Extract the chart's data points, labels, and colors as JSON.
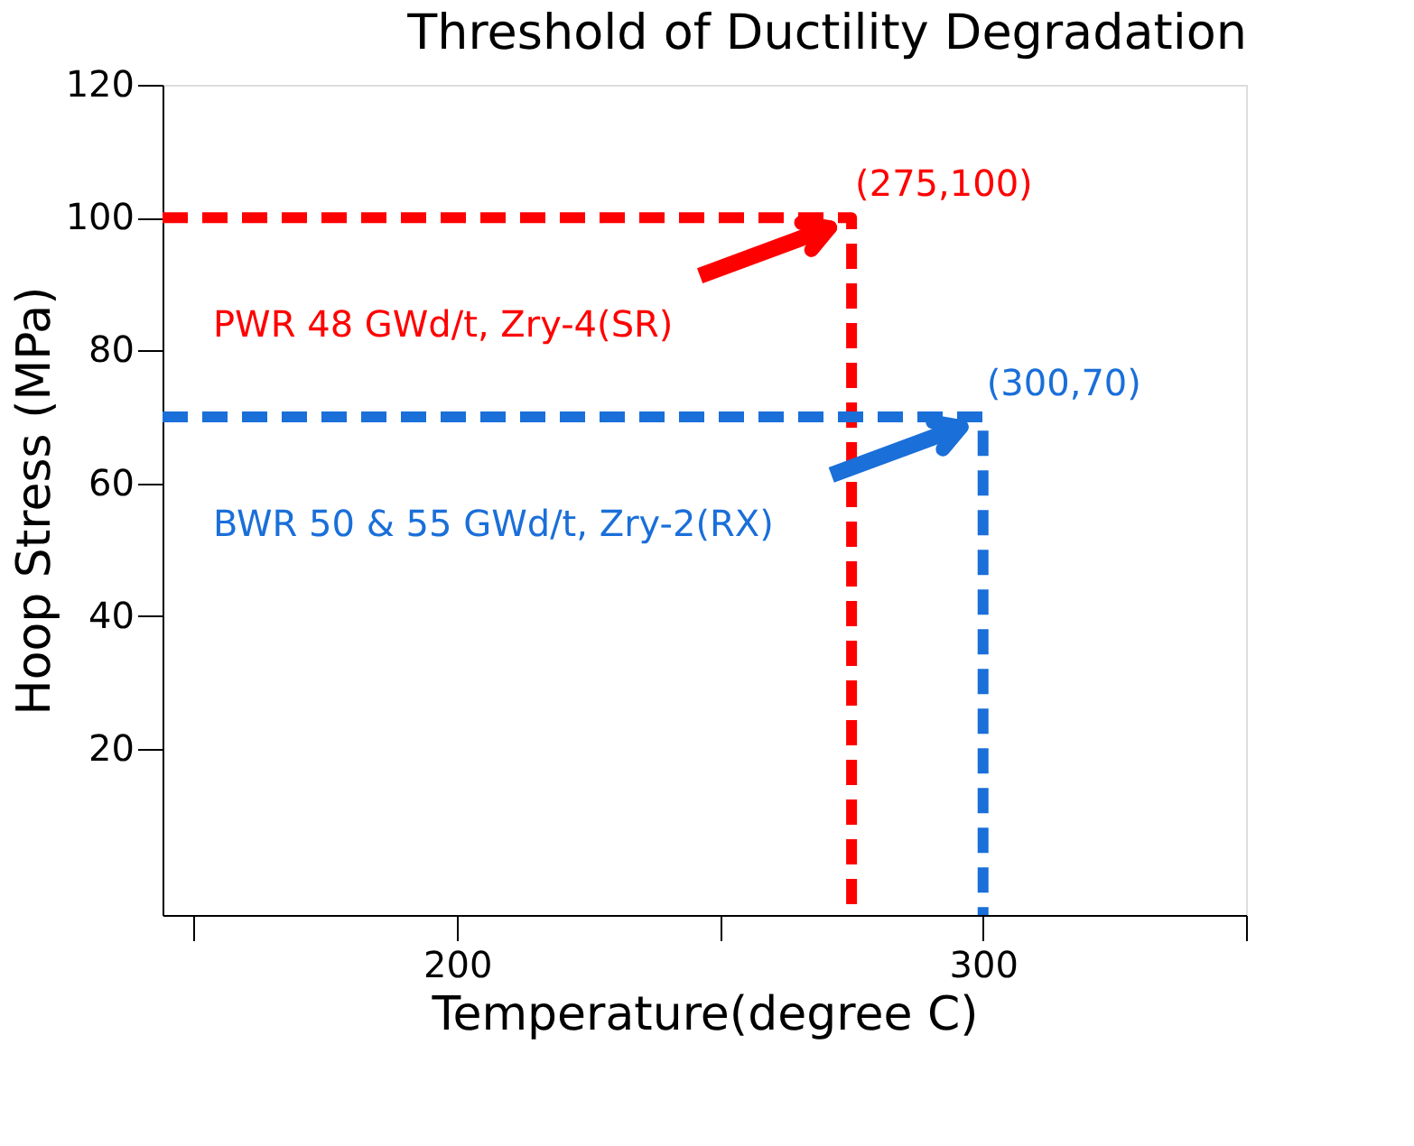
{
  "chart_data": {
    "type": "line",
    "title": "Threshold of Ductility Degradation",
    "xlabel": "Temperature(degree C)",
    "ylabel": "Hoop Stress (MPa)",
    "series": [
      {
        "name": "PWR 48 GWd/t, Zry-4(SR)",
        "color": "#ff0000",
        "x": [
          144,
          275,
          275
        ],
        "values": [
          100,
          100,
          -5
        ]
      },
      {
        "name": "BWR 50 & 55 GWd/t, Zry-2(RX)",
        "color": "#1a6fd9",
        "x": [
          144,
          300,
          300
        ],
        "values": [
          70,
          70,
          -5
        ]
      }
    ],
    "annotations": [
      {
        "text": "(275,100)",
        "x": 275,
        "y": 100
      },
      {
        "text": "(300,70)",
        "x": 300,
        "y": 70
      }
    ],
    "xlim": [
      144,
      350
    ],
    "xticks": [
      {
        "value": 150,
        "label": null
      },
      200,
      {
        "value": 250,
        "label": null
      },
      300,
      {
        "value": 350,
        "label": null
      }
    ],
    "ylim": [
      -5,
      120
    ],
    "yticks": [
      20,
      40,
      60,
      80,
      100,
      120
    ],
    "line_style": "dashed",
    "marker": "none",
    "grid": false
  }
}
